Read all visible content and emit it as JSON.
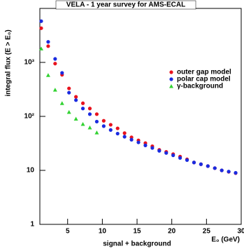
{
  "chart_data": {
    "type": "scatter",
    "title": "VELA - 1 year survey for AMS-ECAL",
    "x_label": "E₀ (GeV)",
    "y_label": "integral flux (E > E₀)",
    "subtitle": "signal + background",
    "log_y": true,
    "legend": "upper right",
    "xlim": [
      1,
      30
    ],
    "xticks": [
      5,
      10,
      15,
      20,
      25,
      30
    ],
    "ylim": [
      1,
      10000
    ],
    "yticks": [
      1,
      10,
      {
        "value": 100,
        "label": "10²"
      },
      {
        "value": 1000,
        "label": "10³"
      }
    ],
    "x": [
      1.2,
      2.2,
      3.2,
      4.2,
      5.2,
      6.2,
      7.2,
      8.2,
      9.2,
      10.2,
      11.2,
      12.2,
      13.2,
      14.2,
      15.2,
      16.2,
      17.2,
      18.2,
      19.2,
      20.2,
      21.2,
      22.2,
      23.2,
      24.2,
      25.2,
      26.2,
      27.2,
      28.2,
      29.2
    ],
    "series": [
      {
        "name": "outer gap model",
        "color": "#e8131e",
        "marker": "circle",
        "values": [
          4300,
          2000,
          950,
          590,
          330,
          230,
          175,
          140,
          110,
          83,
          70,
          60,
          49,
          41,
          36,
          32,
          28,
          24,
          22,
          20,
          18,
          16,
          14,
          13,
          12,
          11,
          10,
          9.4,
          8.9
        ]
      },
      {
        "name": "polar cap model",
        "color": "#1a2be0",
        "marker": "circle",
        "values": [
          5800,
          2400,
          1160,
          640,
          275,
          200,
          140,
          110,
          80,
          66,
          56,
          48,
          42,
          37,
          33,
          29,
          26,
          23,
          21,
          19,
          17,
          15.5,
          14,
          13,
          12,
          11,
          10,
          9.5,
          9
        ]
      },
      {
        "name": "γ-background",
        "color": "#32d232",
        "marker": "triangle",
        "values": [
          1800,
          580,
          310,
          175,
          120,
          90,
          72,
          62,
          50,
          null,
          null,
          null,
          null,
          null,
          null,
          null,
          null,
          null,
          null,
          null,
          null,
          null,
          null,
          null,
          null,
          null,
          null,
          null,
          null
        ]
      }
    ]
  }
}
